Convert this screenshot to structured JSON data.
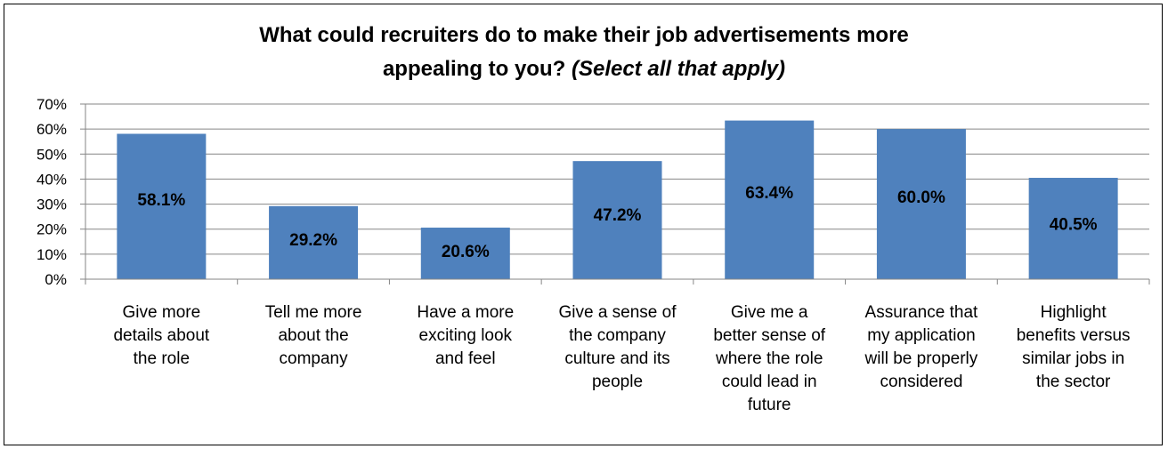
{
  "chart_data": {
    "type": "bar",
    "title": "What could recruiters do to make their job advertisements more appealing to you?",
    "title_lines": [
      "What could recruiters do to make their job advertisements more",
      "appealing to you?"
    ],
    "subtitle": "(Select all that apply)",
    "xlabel": "",
    "ylabel": "",
    "ylim": [
      0,
      70
    ],
    "y_ticks": [
      "0%",
      "10%",
      "20%",
      "30%",
      "40%",
      "50%",
      "60%",
      "70%"
    ],
    "grid": true,
    "legend": "none",
    "bar_color": "#4F81BD",
    "categories": [
      [
        "Give more",
        "details about",
        "the role"
      ],
      [
        "Tell me more",
        "about the",
        "company"
      ],
      [
        "Have a more",
        "exciting look",
        "and feel"
      ],
      [
        "Give a sense of",
        "the company",
        "culture and its",
        "people"
      ],
      [
        "Give me a",
        "better sense of",
        "where the role",
        "could lead in",
        "future"
      ],
      [
        "Assurance that",
        "my application",
        "will be properly",
        "considered"
      ],
      [
        "Highlight",
        "benefits versus",
        "similar jobs in",
        "the sector"
      ]
    ],
    "values": [
      58.1,
      29.2,
      20.6,
      47.2,
      63.4,
      60.0,
      40.5
    ],
    "data_labels": [
      "58.1%",
      "29.2%",
      "20.6%",
      "47.2%",
      "63.4%",
      "60.0%",
      "40.5%"
    ]
  }
}
